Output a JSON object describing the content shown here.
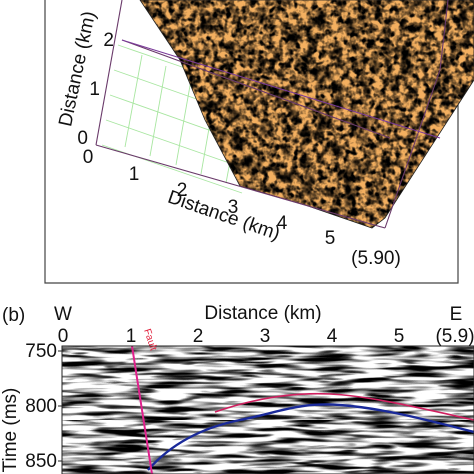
{
  "panel_a": {
    "xaxis": {
      "label": "Distance (km)",
      "ticks": [
        "0",
        "1",
        "2",
        "3",
        "4",
        "5"
      ],
      "end_label": "(5.90)"
    },
    "yaxis": {
      "label": "Distance (km)",
      "ticks": [
        "0",
        "1",
        "2"
      ]
    },
    "colors": {
      "grid": "#a8e6a0",
      "box": "#6a3a6a",
      "line": "#7a3a9a"
    }
  },
  "panel_b": {
    "label": "(b)",
    "west": "W",
    "east": "E",
    "xaxis": {
      "label": "Distance (km)",
      "ticks": [
        "0",
        "1",
        "2",
        "3",
        "4",
        "5"
      ],
      "end_label": "(5.9)"
    },
    "yaxis": {
      "label": "Time (ms)",
      "ticks": [
        "750",
        "800",
        "850"
      ]
    },
    "fault_label": "Fault",
    "colors": {
      "fault": "#e0208c",
      "horizon": "#1a2a9a",
      "horizon2": "#d02060"
    }
  }
}
